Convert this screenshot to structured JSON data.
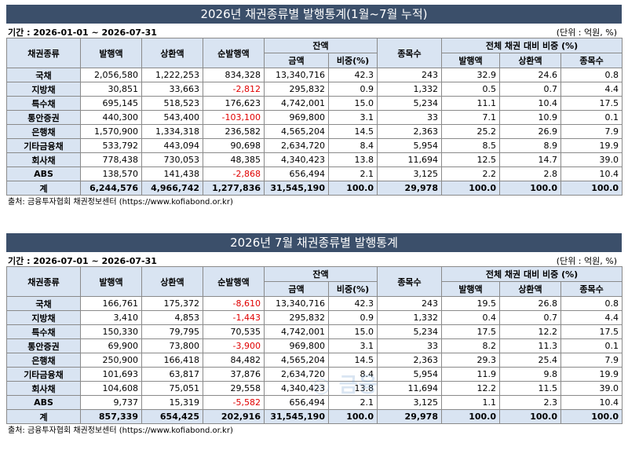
{
  "tables": [
    {
      "title": "2026년 채권종류별 발행통계(1월~7월 누적)",
      "period": "기간 : 2026-01-01 ~ 2026-07-31",
      "unit": "(단위 : 억원, %)",
      "headers": {
        "type": "채권종류",
        "issue": "발행액",
        "redeem": "상환액",
        "net": "순발행액",
        "balance": "잔액",
        "balance_amount": "금액",
        "balance_ratio": "비중(%)",
        "count": "종목수",
        "share": "전체 채권 대비 비중 (%)",
        "share_issue": "발행액",
        "share_redeem": "상환액",
        "share_count": "종목수"
      },
      "rows": [
        {
          "name": "국채",
          "issue": "2,056,580",
          "redeem": "1,222,253",
          "net": "834,328",
          "net_negative": false,
          "amount": "13,340,716",
          "ratio": "42.3",
          "count": "243",
          "s_issue": "32.9",
          "s_redeem": "24.6",
          "s_count": "0.8"
        },
        {
          "name": "지방채",
          "issue": "30,851",
          "redeem": "33,663",
          "net": "-2,812",
          "net_negative": true,
          "amount": "295,832",
          "ratio": "0.9",
          "count": "1,332",
          "s_issue": "0.5",
          "s_redeem": "0.7",
          "s_count": "4.4"
        },
        {
          "name": "특수채",
          "issue": "695,145",
          "redeem": "518,523",
          "net": "176,623",
          "net_negative": false,
          "amount": "4,742,001",
          "ratio": "15.0",
          "count": "5,234",
          "s_issue": "11.1",
          "s_redeem": "10.4",
          "s_count": "17.5"
        },
        {
          "name": "통안증권",
          "issue": "440,300",
          "redeem": "543,400",
          "net": "-103,100",
          "net_negative": true,
          "amount": "969,800",
          "ratio": "3.1",
          "count": "33",
          "s_issue": "7.1",
          "s_redeem": "10.9",
          "s_count": "0.1"
        },
        {
          "name": "은행채",
          "issue": "1,570,900",
          "redeem": "1,334,318",
          "net": "236,582",
          "net_negative": false,
          "amount": "4,565,204",
          "ratio": "14.5",
          "count": "2,363",
          "s_issue": "25.2",
          "s_redeem": "26.9",
          "s_count": "7.9"
        },
        {
          "name": "기타금융채",
          "issue": "533,792",
          "redeem": "443,094",
          "net": "90,698",
          "net_negative": false,
          "amount": "2,634,720",
          "ratio": "8.4",
          "count": "5,954",
          "s_issue": "8.5",
          "s_redeem": "8.9",
          "s_count": "19.9"
        },
        {
          "name": "회사채",
          "issue": "778,438",
          "redeem": "730,053",
          "net": "48,385",
          "net_negative": false,
          "amount": "4,340,423",
          "ratio": "13.8",
          "count": "11,694",
          "s_issue": "12.5",
          "s_redeem": "14.7",
          "s_count": "39.0"
        },
        {
          "name": "ABS",
          "issue": "138,570",
          "redeem": "141,438",
          "net": "-2,868",
          "net_negative": true,
          "amount": "656,494",
          "ratio": "2.1",
          "count": "3,125",
          "s_issue": "2.2",
          "s_redeem": "2.8",
          "s_count": "10.4"
        }
      ],
      "total": {
        "name": "계",
        "issue": "6,244,576",
        "redeem": "4,966,742",
        "net": "1,277,836",
        "amount": "31,545,190",
        "ratio": "100.0",
        "count": "29,978",
        "s_issue": "100.0",
        "s_redeem": "100.0",
        "s_count": "100.0"
      },
      "source": "출처: 금융투자협회 채권정보센터 (https://www.kofiabond.or.kr)"
    },
    {
      "title": "2026년 7월 채권종류별 발행통계",
      "period": "기간 : 2026-07-01 ~ 2026-07-31",
      "unit": "(단위 : 억원, %)",
      "headers": {
        "type": "채권종류",
        "issue": "발행액",
        "redeem": "상환액",
        "net": "순발행액",
        "balance": "잔액",
        "balance_amount": "금액",
        "balance_ratio": "비중(%)",
        "count": "종목수",
        "share": "전체 채권 대비 비중 (%)",
        "share_issue": "발행액",
        "share_redeem": "상환액",
        "share_count": "종목수"
      },
      "rows": [
        {
          "name": "국채",
          "issue": "166,761",
          "redeem": "175,372",
          "net": "-8,610",
          "net_negative": true,
          "amount": "13,340,716",
          "ratio": "42.3",
          "count": "243",
          "s_issue": "19.5",
          "s_redeem": "26.8",
          "s_count": "0.8"
        },
        {
          "name": "지방채",
          "issue": "3,410",
          "redeem": "4,853",
          "net": "-1,443",
          "net_negative": true,
          "amount": "295,832",
          "ratio": "0.9",
          "count": "1,332",
          "s_issue": "0.4",
          "s_redeem": "0.7",
          "s_count": "4.4"
        },
        {
          "name": "특수채",
          "issue": "150,330",
          "redeem": "79,795",
          "net": "70,535",
          "net_negative": false,
          "amount": "4,742,001",
          "ratio": "15.0",
          "count": "5,234",
          "s_issue": "17.5",
          "s_redeem": "12.2",
          "s_count": "17.5"
        },
        {
          "name": "통안증권",
          "issue": "69,900",
          "redeem": "73,800",
          "net": "-3,900",
          "net_negative": true,
          "amount": "969,800",
          "ratio": "3.1",
          "count": "33",
          "s_issue": "8.2",
          "s_redeem": "11.3",
          "s_count": "0.1"
        },
        {
          "name": "은행채",
          "issue": "250,900",
          "redeem": "166,418",
          "net": "84,482",
          "net_negative": false,
          "amount": "4,565,204",
          "ratio": "14.5",
          "count": "2,363",
          "s_issue": "29.3",
          "s_redeem": "25.4",
          "s_count": "7.9"
        },
        {
          "name": "기타금융채",
          "issue": "101,693",
          "redeem": "63,817",
          "net": "37,876",
          "net_negative": false,
          "amount": "2,634,720",
          "ratio": "8.4",
          "count": "5,954",
          "s_issue": "11.9",
          "s_redeem": "9.8",
          "s_count": "19.9"
        },
        {
          "name": "회사채",
          "issue": "104,608",
          "redeem": "75,051",
          "net": "29,558",
          "net_negative": false,
          "amount": "4,340,423",
          "ratio": "13.8",
          "count": "11,694",
          "s_issue": "12.2",
          "s_redeem": "11.5",
          "s_count": "39.0"
        },
        {
          "name": "ABS",
          "issue": "9,737",
          "redeem": "15,319",
          "net": "-5,582",
          "net_negative": true,
          "amount": "656,494",
          "ratio": "2.1",
          "count": "3,125",
          "s_issue": "1.1",
          "s_redeem": "2.3",
          "s_count": "10.4"
        }
      ],
      "total": {
        "name": "계",
        "issue": "857,339",
        "redeem": "654,425",
        "net": "202,916",
        "amount": "31,545,190",
        "ratio": "100.0",
        "count": "29,978",
        "s_issue": "100.0",
        "s_redeem": "100.0",
        "s_count": "100.0"
      },
      "source": "출처: 금융투자협회 채권정보센터 (https://www.kofiabond.or.kr)"
    }
  ]
}
